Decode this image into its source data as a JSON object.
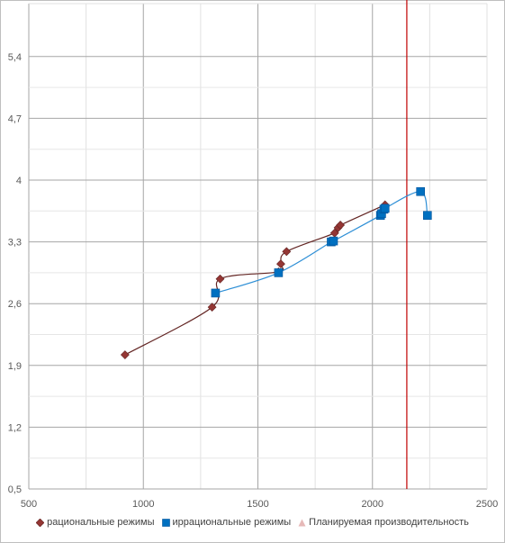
{
  "chart_data": {
    "type": "scatter",
    "xlim": [
      500,
      2500
    ],
    "ylim": [
      0.5,
      6.0
    ],
    "x_ticks": [
      500,
      1000,
      1500,
      2000,
      2500
    ],
    "x_tick_labels": [
      "500",
      "1000",
      "1500",
      "2000",
      "2500"
    ],
    "y_ticks": [
      0.5,
      1.2,
      1.9,
      2.6,
      3.3,
      4.0,
      4.7,
      5.4
    ],
    "y_tick_labels": [
      "0,5",
      "1,2",
      "1,9",
      "2,6",
      "3,3",
      "4",
      "4,7",
      "5,4"
    ],
    "grid": true,
    "legend_position": "bottom",
    "series": [
      {
        "name": "рациональные режимы",
        "marker": "diamond",
        "color": "#943634",
        "line_color": "#632523",
        "smooth": true,
        "points": [
          [
            920,
            2.02
          ],
          [
            1300,
            2.56
          ],
          [
            1335,
            2.88
          ],
          [
            1590,
            2.96
          ],
          [
            1600,
            3.05
          ],
          [
            1625,
            3.19
          ],
          [
            1835,
            3.4
          ],
          [
            1850,
            3.46
          ],
          [
            1860,
            3.49
          ],
          [
            2055,
            3.72
          ]
        ]
      },
      {
        "name": "иррациональные режимы",
        "marker": "square",
        "color": "#0070c0",
        "line_color": "#2e8fd6",
        "smooth": true,
        "points": [
          [
            1315,
            2.72
          ],
          [
            1590,
            2.95
          ],
          [
            1820,
            3.3
          ],
          [
            1830,
            3.31
          ],
          [
            2035,
            3.6
          ],
          [
            2040,
            3.62
          ],
          [
            2050,
            3.67
          ],
          [
            2055,
            3.68
          ],
          [
            2210,
            3.87
          ],
          [
            2240,
            3.6
          ]
        ]
      },
      {
        "name": "Планируемая производительность",
        "marker": "triangle",
        "color": "#e6b9b8",
        "line_color": "#c00000",
        "vertical_line_x": 2150,
        "points": []
      }
    ]
  }
}
